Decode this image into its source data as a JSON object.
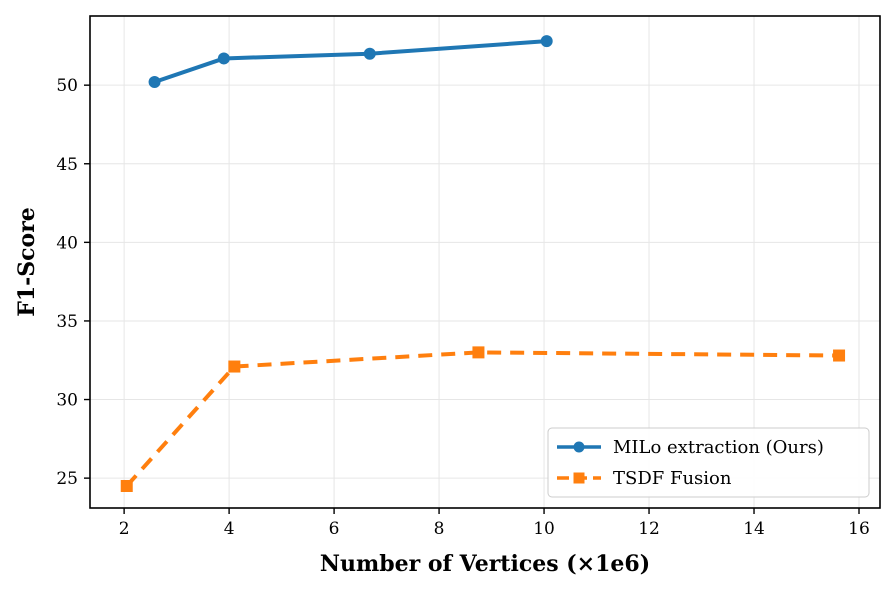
{
  "chart_data": {
    "type": "line",
    "xlabel": "Number of Vertices (×1e6)",
    "ylabel": "F1-Score",
    "xlim": [
      1.35,
      16.4
    ],
    "ylim": [
      23.1,
      54.4
    ],
    "xticks": [
      2,
      4,
      6,
      8,
      10,
      12,
      14,
      16
    ],
    "yticks": [
      25,
      30,
      35,
      40,
      45,
      50
    ],
    "grid": true,
    "legend_position": "lower-right",
    "series": [
      {
        "name": "MILo extraction (Ours)",
        "color": "#1f77b4",
        "line_style": "solid",
        "marker": "circle",
        "x": [
          2.58,
          3.9,
          6.68,
          10.05
        ],
        "y": [
          50.2,
          51.7,
          52.0,
          52.8
        ]
      },
      {
        "name": "TSDF Fusion",
        "color": "#ff7f0e",
        "line_style": "dashed",
        "marker": "square",
        "x": [
          2.05,
          4.1,
          8.75,
          15.62
        ],
        "y": [
          24.5,
          32.1,
          33.0,
          32.8
        ]
      }
    ]
  }
}
